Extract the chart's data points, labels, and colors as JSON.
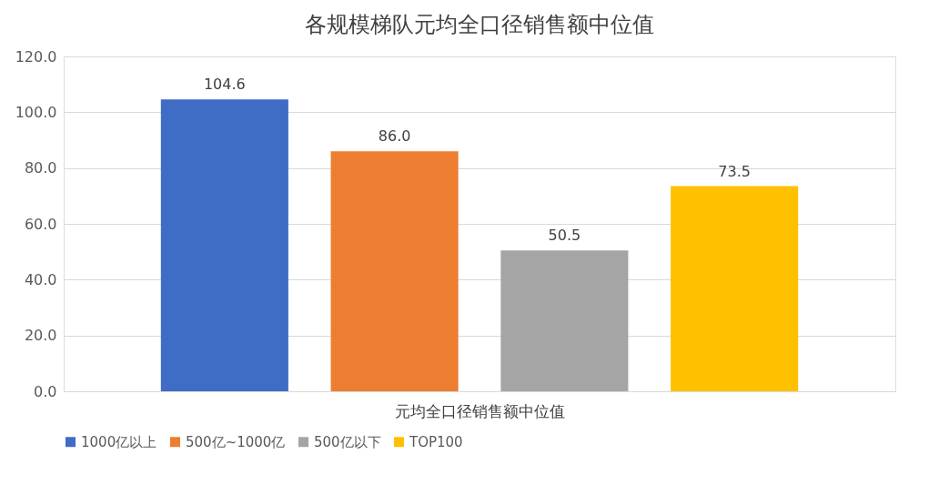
{
  "chart_data": {
    "type": "bar",
    "title": "各规模梯队元均全口径销售额中位值",
    "categories": [
      "元均全口径销售额中位值"
    ],
    "series": [
      {
        "name": "1000亿以上",
        "color": "#3f6cc4",
        "values": [
          104.6
        ],
        "value_labels": [
          "104.6"
        ]
      },
      {
        "name": "500亿~1000亿",
        "color": "#ed7d31",
        "values": [
          86.0
        ],
        "value_labels": [
          "86.0"
        ]
      },
      {
        "name": "500亿以下",
        "color": "#a5a5a5",
        "values": [
          50.5
        ],
        "value_labels": [
          "50.5"
        ]
      },
      {
        "name": "TOP100",
        "color": "#ffc000",
        "values": [
          73.5
        ],
        "value_labels": [
          "73.5"
        ]
      }
    ],
    "ylim": [
      0,
      120
    ],
    "yticks": [
      {
        "value": 0,
        "label": "0.0"
      },
      {
        "value": 20,
        "label": "20.0"
      },
      {
        "value": 40,
        "label": "40.0"
      },
      {
        "value": 60,
        "label": "60.0"
      },
      {
        "value": 80,
        "label": "80.0"
      },
      {
        "value": 100,
        "label": "100.0"
      },
      {
        "value": 120,
        "label": "120.0"
      }
    ],
    "grid": "y",
    "legend": "bottom"
  }
}
